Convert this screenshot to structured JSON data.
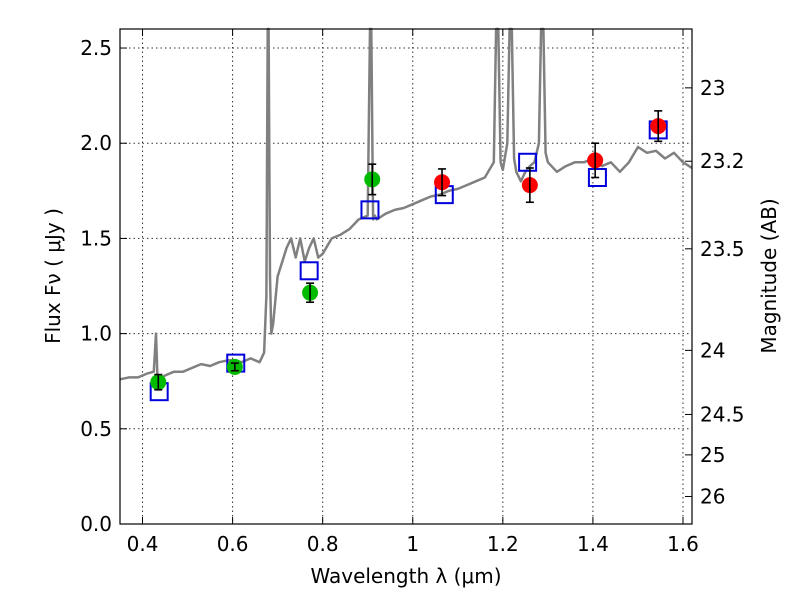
{
  "chart_data": {
    "type": "scatter",
    "title": "",
    "xlabel": "Wavelength  λ (μm)",
    "ylabel": "Flux  Fν  ( μJy )",
    "y2label": "Magnitude (AB)",
    "xlim": [
      0.35,
      1.62
    ],
    "ylim": [
      0.0,
      2.6
    ],
    "grid": true,
    "legend": "none",
    "x_ticks": [
      {
        "value": 0.4,
        "label": "0.4"
      },
      {
        "value": 0.6,
        "label": "0.6"
      },
      {
        "value": 0.8,
        "label": "0.8"
      },
      {
        "value": 1.0,
        "label": "1"
      },
      {
        "value": 1.2,
        "label": "1.2"
      },
      {
        "value": 1.4,
        "label": "1.4"
      },
      {
        "value": 1.6,
        "label": "1.6"
      }
    ],
    "y_ticks": [
      {
        "value": 0.0,
        "label": "0.0"
      },
      {
        "value": 0.5,
        "label": "0.5"
      },
      {
        "value": 1.0,
        "label": "1.0"
      },
      {
        "value": 1.5,
        "label": "1.5"
      },
      {
        "value": 2.0,
        "label": "2.0"
      },
      {
        "value": 2.5,
        "label": "2.5"
      }
    ],
    "y2_ticks": [
      {
        "value": 23.0,
        "label": "23"
      },
      {
        "value": 23.2,
        "label": "23.2"
      },
      {
        "value": 23.5,
        "label": "23.5"
      },
      {
        "value": 24.0,
        "label": "24"
      },
      {
        "value": 24.5,
        "label": "24.5"
      },
      {
        "value": 25.0,
        "label": "25"
      },
      {
        "value": 26.0,
        "label": "26"
      }
    ],
    "series": [
      {
        "kind": "line",
        "color": "#808080",
        "x": [
          0.35,
          0.37,
          0.39,
          0.41,
          0.425,
          0.43,
          0.433,
          0.436,
          0.45,
          0.47,
          0.49,
          0.51,
          0.53,
          0.55,
          0.57,
          0.59,
          0.6,
          0.62,
          0.64,
          0.66,
          0.67,
          0.675,
          0.678,
          0.68,
          0.683,
          0.686,
          0.69,
          0.7,
          0.72,
          0.73,
          0.74,
          0.75,
          0.76,
          0.77,
          0.78,
          0.79,
          0.8,
          0.82,
          0.84,
          0.86,
          0.88,
          0.9,
          0.905,
          0.908,
          0.912,
          0.916,
          0.92,
          0.94,
          0.96,
          0.98,
          1.0,
          1.02,
          1.04,
          1.06,
          1.08,
          1.1,
          1.12,
          1.14,
          1.16,
          1.18,
          1.185,
          1.19,
          1.195,
          1.2,
          1.21,
          1.215,
          1.22,
          1.225,
          1.23,
          1.24,
          1.25,
          1.26,
          1.27,
          1.28,
          1.285,
          1.29,
          1.295,
          1.3,
          1.32,
          1.34,
          1.36,
          1.38,
          1.4,
          1.42,
          1.44,
          1.46,
          1.48,
          1.5,
          1.52,
          1.54,
          1.56,
          1.58,
          1.6,
          1.62
        ],
        "y": [
          0.76,
          0.77,
          0.77,
          0.79,
          0.8,
          1.0,
          0.78,
          0.76,
          0.78,
          0.8,
          0.8,
          0.82,
          0.84,
          0.83,
          0.85,
          0.86,
          0.86,
          0.85,
          0.87,
          0.85,
          0.9,
          1.2,
          2.6,
          2.6,
          1.3,
          1.0,
          1.05,
          1.3,
          1.45,
          1.5,
          1.4,
          1.5,
          1.38,
          1.45,
          1.5,
          1.4,
          1.42,
          1.5,
          1.52,
          1.55,
          1.6,
          1.62,
          2.6,
          2.6,
          1.6,
          1.62,
          1.6,
          1.63,
          1.65,
          1.66,
          1.68,
          1.7,
          1.72,
          1.73,
          1.75,
          1.76,
          1.78,
          1.8,
          1.82,
          1.9,
          2.6,
          2.6,
          1.9,
          1.86,
          2.0,
          2.6,
          2.6,
          1.92,
          1.85,
          1.8,
          1.85,
          1.88,
          1.9,
          2.0,
          2.6,
          2.6,
          1.95,
          1.9,
          1.85,
          1.88,
          1.9,
          1.9,
          1.92,
          1.88,
          1.9,
          1.85,
          1.9,
          1.98,
          1.95,
          1.96,
          1.92,
          1.95,
          1.9,
          1.87
        ]
      },
      {
        "kind": "points",
        "color": "#00bb00",
        "x": [
          0.435,
          0.605,
          0.772,
          0.91
        ],
        "y": [
          0.745,
          0.825,
          1.215,
          1.81
        ],
        "yerr": [
          0.04,
          0.02,
          0.05,
          0.08
        ]
      },
      {
        "kind": "points",
        "color": "#ff0000",
        "x": [
          1.065,
          1.26,
          1.405,
          1.545
        ],
        "y": [
          1.795,
          1.78,
          1.91,
          2.09
        ],
        "yerr": [
          0.07,
          0.09,
          0.09,
          0.08
        ]
      },
      {
        "kind": "squares",
        "color": "#0000dd",
        "x": [
          0.437,
          0.607,
          0.77,
          0.905,
          1.07,
          1.255,
          1.41,
          1.545
        ],
        "y": [
          0.695,
          0.845,
          1.33,
          1.65,
          1.73,
          1.9,
          1.82,
          2.07
        ]
      }
    ]
  }
}
